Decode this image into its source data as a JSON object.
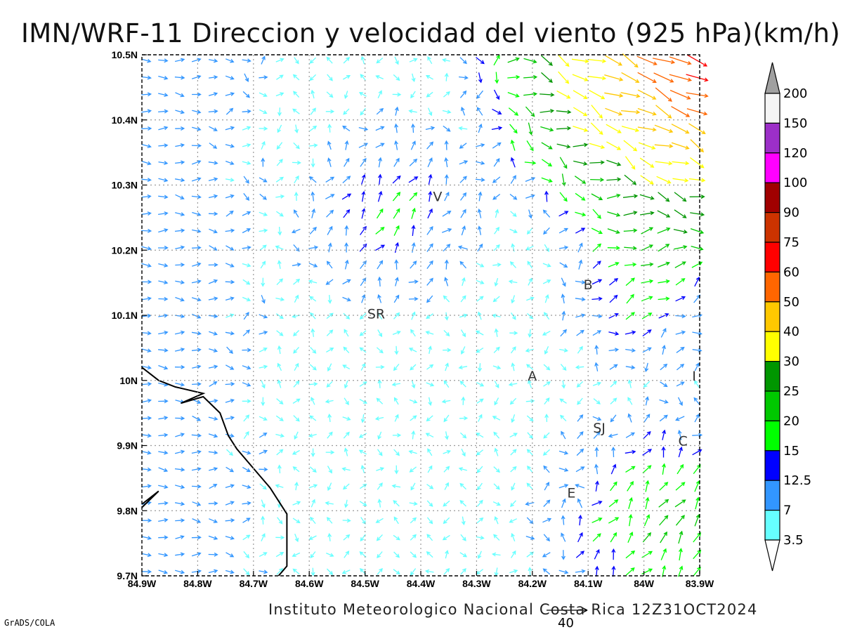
{
  "title": "IMN/WRF-11 Direccion y velocidad del viento (925 hPa)(km/h)",
  "credit": "Instituto Meteorologico Nacional Costa Rica 12Z31OCT2024",
  "software": "GrADS/COLA",
  "reference_vector_label": "40",
  "axes": {
    "lon_labels": [
      "84.9W",
      "84.8W",
      "84.7W",
      "84.6W",
      "84.5W",
      "84.4W",
      "84.3W",
      "84.2W",
      "84.1W",
      "84W",
      "83.9W"
    ],
    "lat_labels": [
      "10.5N",
      "10.4N",
      "10.3N",
      "10.2N",
      "10.1N",
      "10N",
      "9.9N",
      "9.8N",
      "9.7N"
    ],
    "lon_range": [
      -84.9,
      -83.9
    ],
    "lat_range": [
      9.7,
      10.5
    ],
    "grid": "dotted"
  },
  "place_labels": [
    {
      "text": "V",
      "lon": -84.37,
      "lat": 10.275
    },
    {
      "text": "SR",
      "lon": -84.48,
      "lat": 10.095
    },
    {
      "text": "B",
      "lon": -84.1,
      "lat": 10.14
    },
    {
      "text": "A",
      "lon": -84.2,
      "lat": 10.0
    },
    {
      "text": "I",
      "lon": -83.91,
      "lat": 10.0
    },
    {
      "text": "SJ",
      "lon": -84.08,
      "lat": 9.92
    },
    {
      "text": "C",
      "lon": -83.93,
      "lat": 9.9
    },
    {
      "text": "E",
      "lon": -84.13,
      "lat": 9.82
    }
  ],
  "colorbar": {
    "labels": [
      "200",
      "150",
      "120",
      "100",
      "90",
      "75",
      "60",
      "50",
      "40",
      "30",
      "25",
      "20",
      "15",
      "12.5",
      "7",
      "3.5"
    ],
    "colors": [
      "#a0a0a0",
      "#f5f5f5",
      "#9c2fc8",
      "#ff00ff",
      "#a00000",
      "#cc3300",
      "#ff0000",
      "#ff6600",
      "#ffc800",
      "#ffff00",
      "#009600",
      "#00c800",
      "#00ff00",
      "#0000ff",
      "#3296ff",
      "#66ffff",
      "#ffffff"
    ]
  },
  "coastline_color": "#000000"
}
